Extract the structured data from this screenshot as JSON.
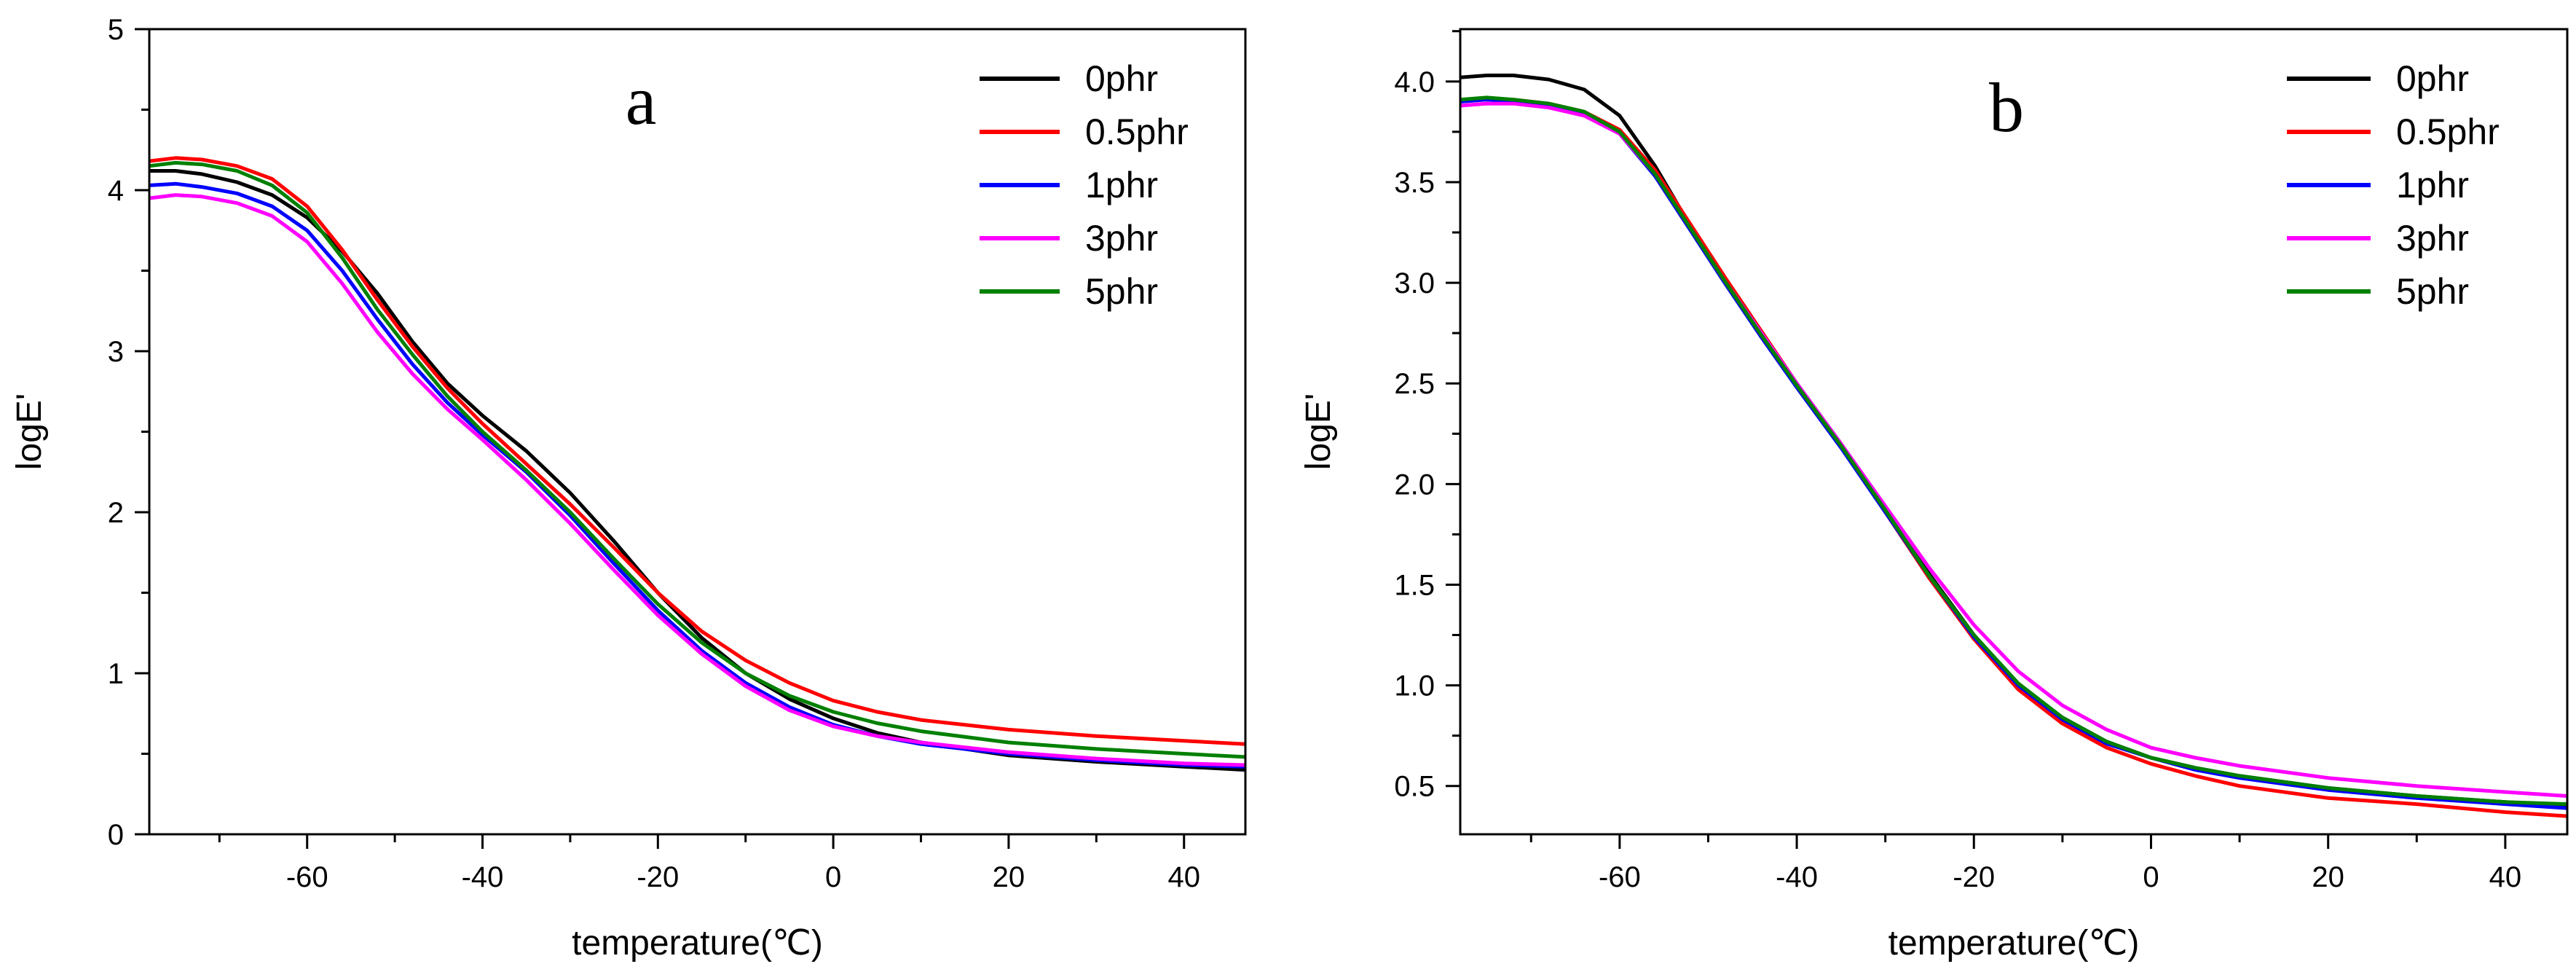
{
  "figure_name": "dma-storage-modulus",
  "chart_data": [
    {
      "type": "line",
      "panel_label": "a",
      "xlabel": "temperature(℃)",
      "ylabel": "logE'",
      "xlim": [
        -78,
        47
      ],
      "ylim": [
        0,
        5
      ],
      "xticks": [
        -60,
        -40,
        -20,
        0,
        20,
        40
      ],
      "xtick_labels": [
        "-60",
        "-40",
        "-20",
        "0",
        "20",
        "40"
      ],
      "yticks": [
        0,
        1,
        2,
        3,
        4,
        5
      ],
      "ytick_labels": [
        "0",
        "1",
        "2",
        "3",
        "4",
        "5"
      ],
      "minor_xstep": 10,
      "minor_ystep": 0.5,
      "legend_position": "top-right",
      "series": [
        {
          "name": "0phr",
          "color": "#000000",
          "x": [
            -78,
            -75,
            -72,
            -68,
            -64,
            -60,
            -56,
            -52,
            -48,
            -44,
            -40,
            -35,
            -30,
            -25,
            -20,
            -15,
            -10,
            -5,
            0,
            5,
            10,
            20,
            30,
            40,
            47
          ],
          "y": [
            4.12,
            4.12,
            4.1,
            4.05,
            3.97,
            3.83,
            3.62,
            3.36,
            3.06,
            2.8,
            2.6,
            2.38,
            2.12,
            1.82,
            1.5,
            1.22,
            1.0,
            0.84,
            0.72,
            0.63,
            0.57,
            0.49,
            0.45,
            0.42,
            0.4
          ]
        },
        {
          "name": "0.5phr",
          "color": "#ff0000",
          "x": [
            -78,
            -75,
            -72,
            -68,
            -64,
            -60,
            -56,
            -52,
            -48,
            -44,
            -40,
            -35,
            -30,
            -25,
            -20,
            -15,
            -10,
            -5,
            0,
            5,
            10,
            20,
            30,
            40,
            47
          ],
          "y": [
            4.18,
            4.2,
            4.19,
            4.15,
            4.07,
            3.9,
            3.63,
            3.32,
            3.03,
            2.77,
            2.55,
            2.3,
            2.05,
            1.78,
            1.5,
            1.26,
            1.08,
            0.94,
            0.83,
            0.76,
            0.71,
            0.65,
            0.61,
            0.58,
            0.56
          ]
        },
        {
          "name": "1phr",
          "color": "#0000ff",
          "x": [
            -78,
            -75,
            -72,
            -68,
            -64,
            -60,
            -56,
            -52,
            -48,
            -44,
            -40,
            -35,
            -30,
            -25,
            -20,
            -15,
            -10,
            -5,
            0,
            5,
            10,
            20,
            30,
            40,
            47
          ],
          "y": [
            4.03,
            4.04,
            4.02,
            3.98,
            3.9,
            3.75,
            3.5,
            3.2,
            2.92,
            2.68,
            2.48,
            2.25,
            1.98,
            1.68,
            1.39,
            1.14,
            0.94,
            0.79,
            0.68,
            0.61,
            0.56,
            0.5,
            0.46,
            0.43,
            0.42
          ]
        },
        {
          "name": "3phr",
          "color": "#ff00ff",
          "x": [
            -78,
            -75,
            -72,
            -68,
            -64,
            -60,
            -56,
            -52,
            -48,
            -44,
            -40,
            -35,
            -30,
            -25,
            -20,
            -15,
            -10,
            -5,
            0,
            5,
            10,
            20,
            30,
            40,
            47
          ],
          "y": [
            3.95,
            3.97,
            3.96,
            3.92,
            3.84,
            3.68,
            3.42,
            3.12,
            2.86,
            2.64,
            2.45,
            2.2,
            1.93,
            1.64,
            1.36,
            1.12,
            0.92,
            0.77,
            0.67,
            0.61,
            0.57,
            0.51,
            0.47,
            0.44,
            0.43
          ]
        },
        {
          "name": "5phr",
          "color": "#008000",
          "x": [
            -78,
            -75,
            -72,
            -68,
            -64,
            -60,
            -56,
            -52,
            -48,
            -44,
            -40,
            -35,
            -30,
            -25,
            -20,
            -15,
            -10,
            -5,
            0,
            5,
            10,
            20,
            30,
            40,
            47
          ],
          "y": [
            4.15,
            4.17,
            4.16,
            4.12,
            4.03,
            3.86,
            3.58,
            3.26,
            2.98,
            2.72,
            2.5,
            2.26,
            2.0,
            1.71,
            1.43,
            1.19,
            1.0,
            0.86,
            0.76,
            0.69,
            0.64,
            0.57,
            0.53,
            0.5,
            0.48
          ]
        }
      ]
    },
    {
      "type": "line",
      "panel_label": "b",
      "xlabel": "temperature(℃)",
      "ylabel": "logE'",
      "xlim": [
        -78,
        47
      ],
      "ylim": [
        0.26,
        4.26
      ],
      "xticks": [
        -60,
        -40,
        -20,
        0,
        20,
        40
      ],
      "xtick_labels": [
        "-60",
        "-40",
        "-20",
        "0",
        "20",
        "40"
      ],
      "yticks": [
        0.5,
        1.0,
        1.5,
        2.0,
        2.5,
        3.0,
        3.5,
        4.0
      ],
      "ytick_labels": [
        "0.5",
        "1.0",
        "1.5",
        "2.0",
        "2.5",
        "3.0",
        "3.5",
        "4.0"
      ],
      "minor_xstep": 10,
      "minor_ystep": 0.25,
      "legend_position": "top-right",
      "series": [
        {
          "name": "0phr",
          "color": "#000000",
          "x": [
            -78,
            -75,
            -72,
            -68,
            -64,
            -60,
            -56,
            -52,
            -48,
            -44,
            -40,
            -35,
            -30,
            -25,
            -20,
            -15,
            -10,
            -5,
            0,
            5,
            10,
            20,
            30,
            40,
            47
          ],
          "y": [
            4.02,
            4.03,
            4.03,
            4.01,
            3.96,
            3.83,
            3.58,
            3.28,
            3.0,
            2.74,
            2.5,
            2.2,
            1.88,
            1.55,
            1.25,
            1.0,
            0.84,
            0.72,
            0.64,
            0.59,
            0.55,
            0.49,
            0.45,
            0.42,
            0.4
          ]
        },
        {
          "name": "0.5phr",
          "color": "#ff0000",
          "x": [
            -78,
            -75,
            -72,
            -68,
            -64,
            -60,
            -56,
            -52,
            -48,
            -44,
            -40,
            -35,
            -30,
            -25,
            -20,
            -15,
            -10,
            -5,
            0,
            5,
            10,
            20,
            30,
            40,
            47
          ],
          "y": [
            3.9,
            3.91,
            3.91,
            3.89,
            3.85,
            3.76,
            3.56,
            3.29,
            3.02,
            2.76,
            2.5,
            2.19,
            1.86,
            1.53,
            1.23,
            0.98,
            0.81,
            0.69,
            0.61,
            0.55,
            0.5,
            0.44,
            0.41,
            0.37,
            0.35
          ]
        },
        {
          "name": "1phr",
          "color": "#0000ff",
          "x": [
            -78,
            -75,
            -72,
            -68,
            -64,
            -60,
            -56,
            -52,
            -48,
            -44,
            -40,
            -35,
            -30,
            -25,
            -20,
            -15,
            -10,
            -5,
            0,
            5,
            10,
            20,
            30,
            40,
            47
          ],
          "y": [
            3.9,
            3.91,
            3.9,
            3.88,
            3.84,
            3.74,
            3.53,
            3.26,
            2.99,
            2.73,
            2.48,
            2.18,
            1.86,
            1.54,
            1.24,
            1.0,
            0.83,
            0.71,
            0.64,
            0.58,
            0.54,
            0.48,
            0.44,
            0.41,
            0.39
          ]
        },
        {
          "name": "3phr",
          "color": "#ff00ff",
          "x": [
            -78,
            -75,
            -72,
            -68,
            -64,
            -60,
            -56,
            -52,
            -48,
            -44,
            -40,
            -35,
            -30,
            -25,
            -20,
            -15,
            -10,
            -5,
            0,
            5,
            10,
            20,
            30,
            40,
            47
          ],
          "y": [
            3.88,
            3.89,
            3.89,
            3.87,
            3.83,
            3.74,
            3.54,
            3.27,
            3.0,
            2.75,
            2.5,
            2.2,
            1.89,
            1.58,
            1.3,
            1.07,
            0.9,
            0.78,
            0.69,
            0.64,
            0.6,
            0.54,
            0.5,
            0.47,
            0.45
          ]
        },
        {
          "name": "5phr",
          "color": "#008000",
          "x": [
            -78,
            -75,
            -72,
            -68,
            -64,
            -60,
            -56,
            -52,
            -48,
            -44,
            -40,
            -35,
            -30,
            -25,
            -20,
            -15,
            -10,
            -5,
            0,
            5,
            10,
            20,
            30,
            40,
            47
          ],
          "y": [
            3.91,
            3.92,
            3.91,
            3.89,
            3.85,
            3.75,
            3.54,
            3.27,
            3.0,
            2.74,
            2.49,
            2.19,
            1.87,
            1.54,
            1.25,
            1.01,
            0.84,
            0.72,
            0.64,
            0.59,
            0.55,
            0.49,
            0.45,
            0.42,
            0.41
          ]
        }
      ]
    }
  ]
}
